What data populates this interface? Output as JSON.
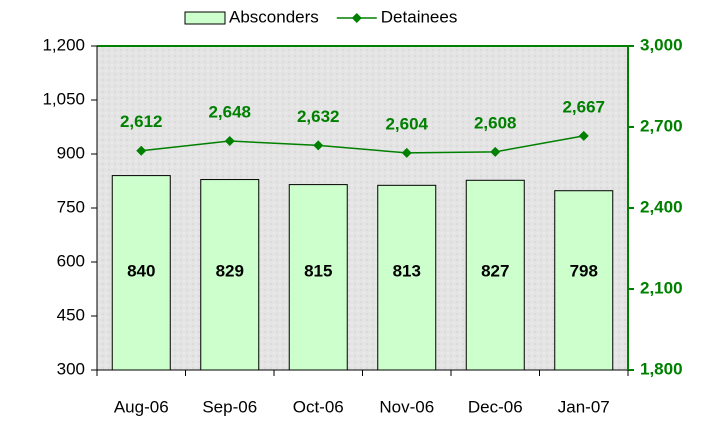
{
  "chart_data": {
    "type": "bar",
    "categories": [
      "Aug-06",
      "Sep-06",
      "Oct-06",
      "Nov-06",
      "Dec-06",
      "Jan-07"
    ],
    "series": [
      {
        "name": "Absconders",
        "type": "bar",
        "color": "#ccffcc",
        "values": [
          840,
          829,
          815,
          813,
          827,
          798
        ]
      },
      {
        "name": "Detainees",
        "type": "line",
        "axis": "y2",
        "color": "#008000",
        "values": [
          2612,
          2648,
          2632,
          2604,
          2608,
          2667
        ],
        "value_labels": [
          "2,612",
          "2,648",
          "2,632",
          "2,604",
          "2,608",
          "2,667"
        ]
      }
    ],
    "ylim": [
      300,
      1200
    ],
    "yticks": [
      300,
      450,
      600,
      750,
      900,
      {
        "value": 1050,
        "label": "1,050"
      },
      {
        "value": 1200,
        "label": "1,200"
      }
    ],
    "y2lim": [
      1800,
      3000
    ],
    "y2ticks": [
      {
        "value": 1800,
        "label": "1,800"
      },
      {
        "value": 2100,
        "label": "2,100"
      },
      {
        "value": 2400,
        "label": "2,400"
      },
      {
        "value": 2700,
        "label": "2,700"
      },
      {
        "value": 3000,
        "label": "3,000"
      }
    ],
    "legend": "top"
  }
}
